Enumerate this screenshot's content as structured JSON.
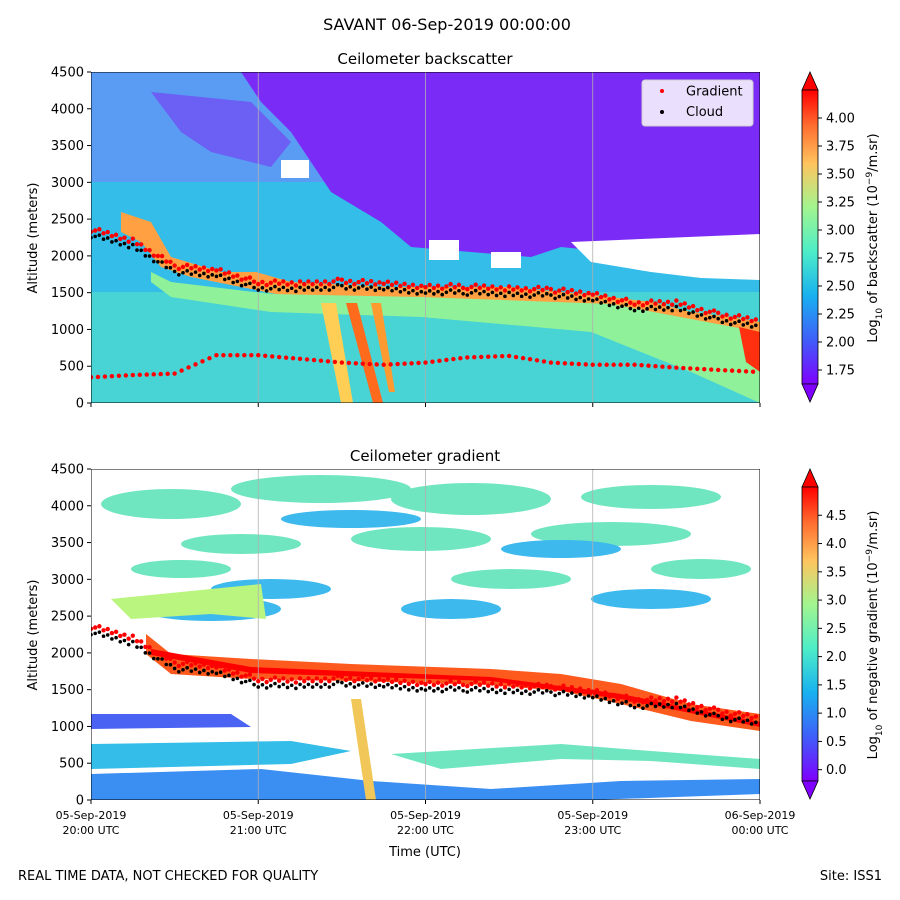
{
  "suptitle": "SAVANT 06-Sep-2019 00:00:00",
  "footer": {
    "left": "REAL TIME DATA, NOT CHECKED FOR QUALITY",
    "right": "Site: ISS1"
  },
  "colors": {
    "gradient_marker": "#ff0000",
    "cloud_marker": "#000000",
    "grid": "#b0b0b0"
  },
  "chart_data": [
    {
      "type": "heatmap",
      "title": "Ceilometer backscatter",
      "ylabel": "Altitude (meters)",
      "xlabel": "",
      "ylim": [
        0,
        4500
      ],
      "xlim": [
        "05-Sep-2019 20:00 UTC",
        "06-Sep-2019 00:00 UTC"
      ],
      "yticks": [
        "0",
        "500",
        "1000",
        "1500",
        "2000",
        "2500",
        "3000",
        "3500",
        "4000",
        "4500"
      ],
      "grid": "vertical",
      "colorbar": {
        "label": "Log10 of backscatter (10^-9/m.sr)",
        "ticks": [
          "1.75",
          "2.00",
          "2.25",
          "2.50",
          "2.75",
          "3.00",
          "3.25",
          "3.50",
          "3.75",
          "4.00"
        ],
        "range": [
          1.625,
          4.25
        ],
        "extend": "both"
      },
      "legend": {
        "placement": "top-right",
        "entries": [
          "Gradient",
          "Cloud"
        ]
      },
      "series": [
        {
          "name": "Gradient",
          "marker": "red dots"
        },
        {
          "name": "Cloud",
          "marker": "black dots"
        }
      ],
      "x_hours": [
        0,
        0.25,
        0.5,
        0.75,
        1.0,
        1.25,
        1.5,
        1.75,
        2.0,
        2.25,
        2.5,
        2.75,
        3.0,
        3.25,
        3.5,
        3.75,
        4.0
      ],
      "cloud_base_m": [
        2300,
        2150,
        1800,
        1750,
        1580,
        1560,
        1600,
        1560,
        1530,
        1520,
        1500,
        1480,
        1420,
        1300,
        1300,
        1150,
        1050
      ],
      "low_layer_m": [
        350,
        380,
        400,
        650,
        650,
        600,
        550,
        520,
        550,
        620,
        640,
        550,
        520,
        520,
        480,
        450,
        420
      ]
    },
    {
      "type": "heatmap",
      "title": "Ceilometer gradient",
      "ylabel": "Altitude (meters)",
      "xlabel": "Time (UTC)",
      "ylim": [
        0,
        4500
      ],
      "yticks": [
        "0",
        "500",
        "1000",
        "1500",
        "2000",
        "2500",
        "3000",
        "3500",
        "4000",
        "4500"
      ],
      "xticks": [
        {
          "date": "05-Sep-2019",
          "time": "20:00 UTC"
        },
        {
          "date": "05-Sep-2019",
          "time": "21:00 UTC"
        },
        {
          "date": "05-Sep-2019",
          "time": "22:00 UTC"
        },
        {
          "date": "05-Sep-2019",
          "time": "23:00 UTC"
        },
        {
          "date": "06-Sep-2019",
          "time": "00:00 UTC"
        }
      ],
      "grid": "vertical",
      "colorbar": {
        "label": "Log10 of negative gradient (10^-9/m.sr)",
        "ticks": [
          "0.0",
          "0.5",
          "1.0",
          "1.5",
          "2.0",
          "2.5",
          "3.0",
          "3.5",
          "4.0",
          "4.5"
        ],
        "range": [
          -0.2,
          5.0
        ],
        "extend": "both"
      },
      "x_hours": [
        0,
        0.25,
        0.5,
        0.75,
        1.0,
        1.25,
        1.5,
        1.75,
        2.0,
        2.25,
        2.5,
        2.75,
        3.0,
        3.25,
        3.5,
        3.75,
        4.0
      ],
      "cloud_base_m": [
        2300,
        2150,
        1800,
        1750,
        1580,
        1560,
        1600,
        1560,
        1530,
        1520,
        1500,
        1480,
        1420,
        1300,
        1300,
        1150,
        1050
      ]
    }
  ]
}
